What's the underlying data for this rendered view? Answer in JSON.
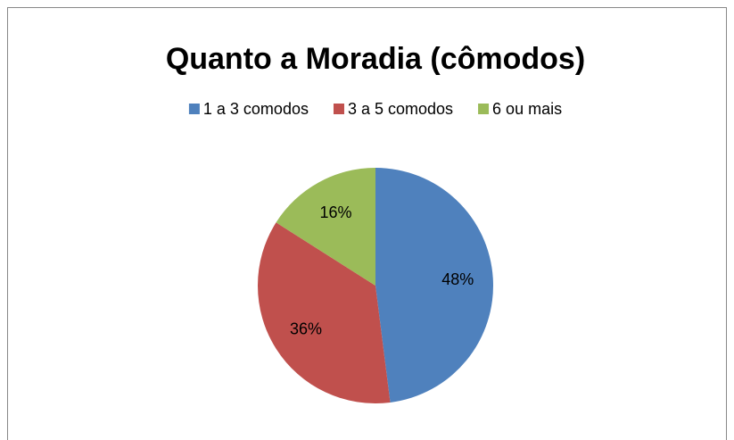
{
  "chart_data": {
    "type": "pie",
    "title": "Quanto a Moradia (cômodos)",
    "categories": [
      "1 a 3 comodos",
      "3 a 5 comodos",
      "6 ou mais"
    ],
    "values": [
      48,
      36,
      16
    ],
    "value_labels": [
      "48%",
      "36%",
      "16%"
    ],
    "colors": [
      "#4f81bd",
      "#c0504d",
      "#9bbb59"
    ],
    "legend": "top"
  }
}
